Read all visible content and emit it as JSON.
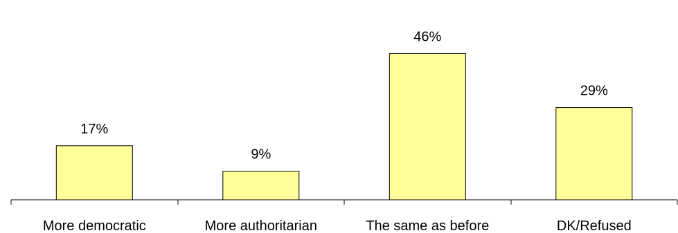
{
  "chart_data": {
    "type": "bar",
    "categories": [
      "More democratic",
      "More authoritarian",
      "The same as before",
      "DK/Refused"
    ],
    "values": [
      17,
      9,
      46,
      29
    ],
    "value_labels": [
      "17%",
      "9%",
      "46%",
      "29%"
    ],
    "unit": "%",
    "ylim": [
      0,
      50
    ],
    "grid": false,
    "legend": "none",
    "colors": {
      "bar_fill": "#FFFF99",
      "bar_stroke": "#000000"
    }
  }
}
